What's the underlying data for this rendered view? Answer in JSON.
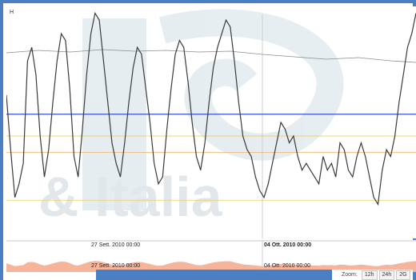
{
  "window": {
    "corner_label": "H"
  },
  "watermark": {
    "text": "& Italia"
  },
  "navigator": {
    "dates": [
      "27 Sett. 2010 00:00",
      "04 Ott. 2010 00:00"
    ],
    "scroll_dates": [
      "27 Sett. 2010 00:00",
      "04 Ott. 2010 00:00"
    ]
  },
  "zoom": {
    "label": "Zoom:",
    "buttons": [
      "12h",
      "24h",
      "2G"
    ]
  },
  "colors": {
    "accent": "#4a7fc4",
    "series": "#3a3a3a",
    "upper_line": "#8c8c8c",
    "yellow_band": "#e6d06a",
    "orange_band": "#f0b06a",
    "blue_line": "#3a4fd0",
    "navigator_fill": "#f4a78a"
  },
  "chart_data": {
    "type": "line",
    "series": [
      {
        "values": [
          210,
          130,
          60,
          80,
          110,
          260,
          280,
          240,
          150,
          90,
          130,
          200,
          260,
          300,
          290,
          220,
          120,
          90,
          160,
          240,
          300,
          330,
          320,
          260,
          200,
          140,
          110,
          90,
          140,
          200,
          250,
          280,
          270,
          220,
          170,
          110,
          80,
          90,
          160,
          220,
          270,
          290,
          280,
          230,
          170,
          120,
          100,
          140,
          200,
          250,
          280,
          300,
          320,
          310,
          260,
          200,
          150,
          130,
          120,
          90,
          70,
          60,
          80,
          110,
          140,
          170,
          160,
          140,
          150,
          120,
          100,
          110,
          100,
          90,
          80,
          120,
          100,
          110,
          90,
          140,
          130,
          100,
          90,
          120,
          140,
          120,
          90,
          60,
          50,
          100,
          130,
          120,
          150,
          200,
          240,
          280,
          300,
          330
        ]
      }
    ],
    "reference_lines": [
      {
        "level": 56
      },
      {
        "level": 126
      },
      {
        "level": 150
      },
      {
        "level": 182
      }
    ],
    "x_ticks": [
      "27 Sett. 2010 00:00",
      "04 Ott. 2010 00:00"
    ]
  }
}
